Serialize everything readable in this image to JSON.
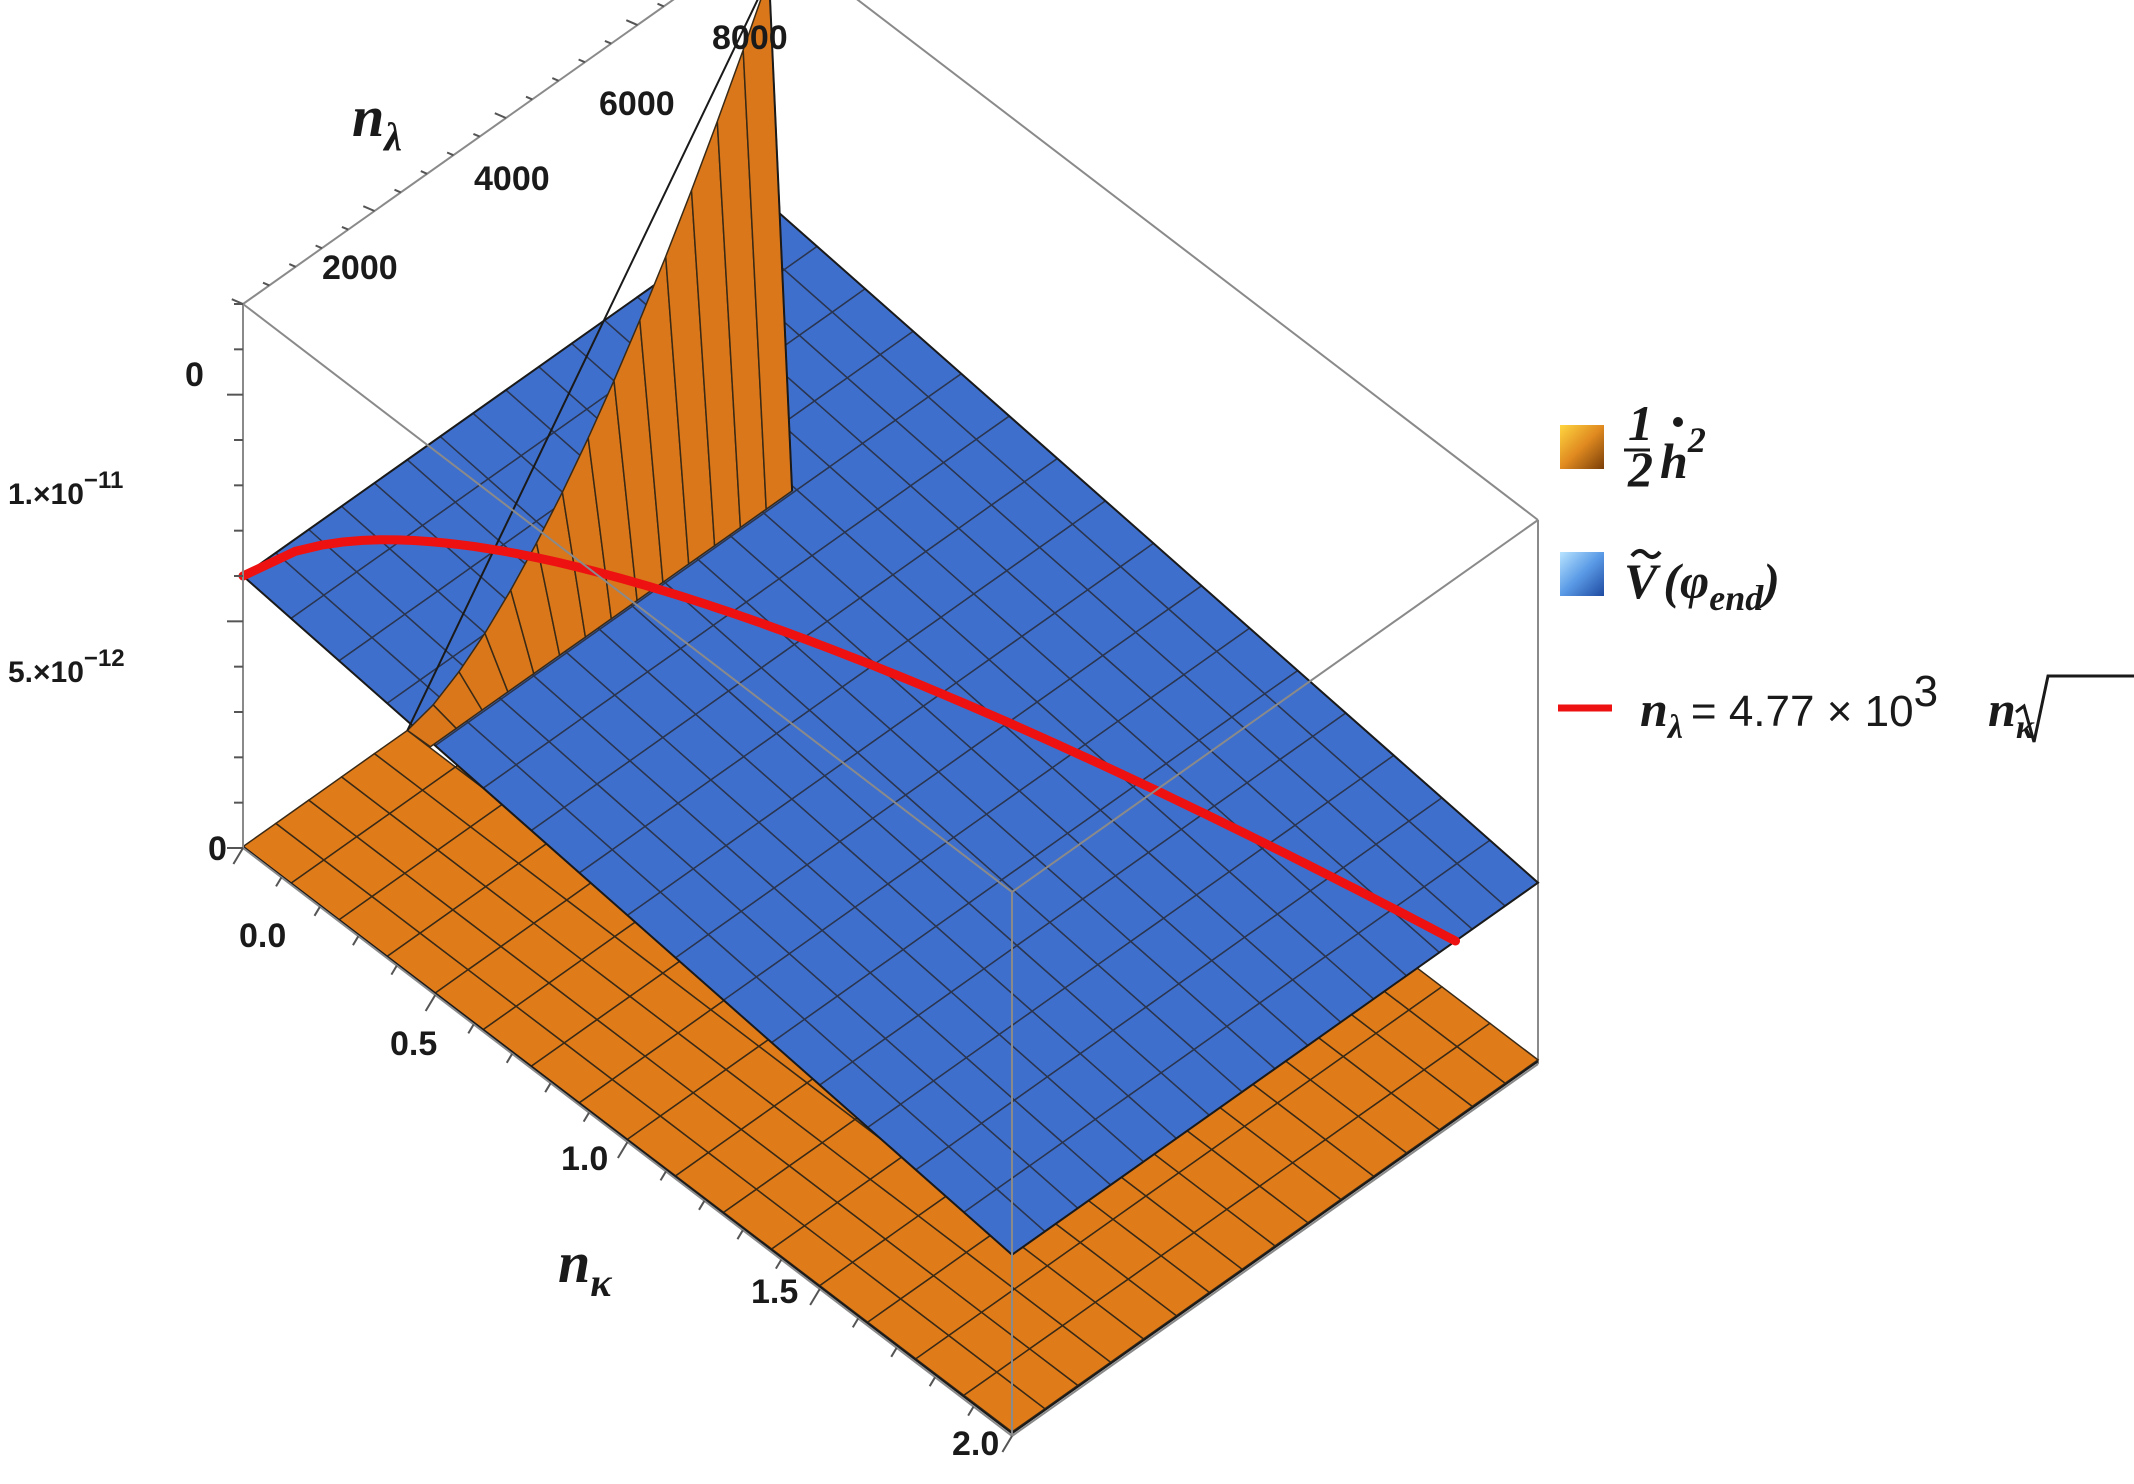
{
  "chart_data": {
    "type": "surface3d",
    "axes": {
      "x": {
        "label_var": "n",
        "label_sub": "κ",
        "range": [
          0.0,
          2.0
        ],
        "ticks": [
          "0.0",
          "0.5",
          "1.0",
          "1.5",
          "2.0"
        ]
      },
      "y": {
        "label_var": "n",
        "label_sub": "λ",
        "range": [
          0,
          8000
        ],
        "ticks": [
          "0",
          "2000",
          "4000",
          "6000",
          "8000"
        ]
      },
      "z": {
        "range": [
          0,
          1.2e-11
        ],
        "ticks": [
          {
            "mant": "0",
            "exp": ""
          },
          {
            "mant": "5.×10",
            "exp": "−12"
          },
          {
            "mant": "1.×10",
            "exp": "−11"
          }
        ]
      }
    },
    "series": [
      {
        "name": "½ ḣ²",
        "kind": "surface",
        "color": "#e07b1a",
        "description": "near zero everywhere, steep rise at small n_κ and large n_λ up to ~1.1e-11"
      },
      {
        "name": "Ṽ(φ_end)",
        "kind": "surface",
        "color": "#3f6fcc",
        "description": "flat plane, decreasing from ~6e-12 at n_κ=0 to ~4e-12 at n_κ=2"
      },
      {
        "name": "n_λ = 4.77 × 10³ √n_κ",
        "kind": "curve",
        "color": "#ee1111",
        "coefficient": 4770
      }
    ],
    "legend_position": "right",
    "grid": false
  },
  "legend": {
    "item1": {
      "frac_num": "1",
      "frac_den": "2",
      "var": "h",
      "sup": "2",
      "swatch": "#e07b1a"
    },
    "item2": {
      "var": "V",
      "open": "(",
      "phi": "φ",
      "sub": "end",
      "close": ")",
      "swatch": "#3f6fcc"
    },
    "item3": {
      "lhs": "n",
      "lhs_sub": "λ",
      "eq": "= 4.77 × 10",
      "eq_sup": "3",
      "rad_var": "n",
      "rad_sub": "κ",
      "swatch": "#ee1111"
    }
  }
}
